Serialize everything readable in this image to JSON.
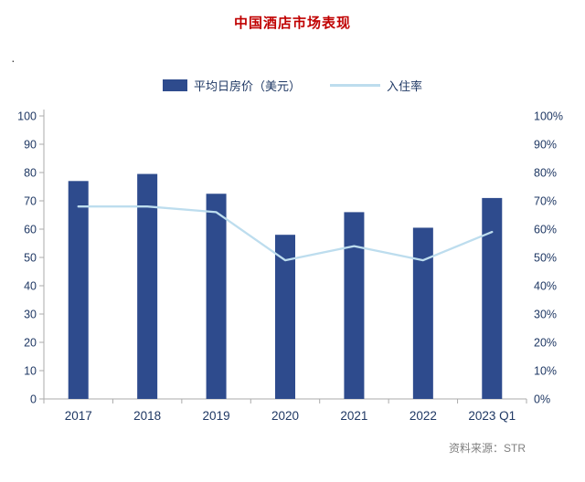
{
  "title": "中国酒店市场表现",
  "stray_dot": "·",
  "legend": {
    "bar_label": "平均日房价（美元）",
    "line_label": "入住率"
  },
  "source": "资料来源：STR",
  "colors": {
    "title": "#c00000",
    "bar": "#2e4b8d",
    "line": "#bdddee",
    "axis_text": "#1f3864",
    "axis_line": "#ababab",
    "source_text": "#7f7f7f"
  },
  "chart_data": {
    "type": "bar+line",
    "title": "中国酒店市场表现",
    "categories": [
      "2017",
      "2018",
      "2019",
      "2020",
      "2021",
      "2022",
      "2023 Q1"
    ],
    "series": [
      {
        "name": "平均日房价（美元）",
        "type": "bar",
        "axis": "left",
        "values": [
          77,
          79.5,
          72.5,
          58,
          66,
          60.5,
          71
        ]
      },
      {
        "name": "入住率",
        "type": "line",
        "axis": "right",
        "values": [
          68,
          68,
          66,
          49,
          54,
          49,
          59
        ]
      }
    ],
    "left_axis": {
      "min": 0,
      "max": 100,
      "step": 10,
      "tick_labels": [
        "0",
        "10",
        "20",
        "30",
        "40",
        "50",
        "60",
        "70",
        "80",
        "90",
        "100"
      ]
    },
    "right_axis": {
      "min": 0,
      "max": 100,
      "step": 10,
      "format": "percent",
      "tick_labels": [
        "0%",
        "10%",
        "20%",
        "30%",
        "40%",
        "50%",
        "60%",
        "70%",
        "80%",
        "90%",
        "100%"
      ]
    },
    "legend_position": "top",
    "grid": false
  }
}
